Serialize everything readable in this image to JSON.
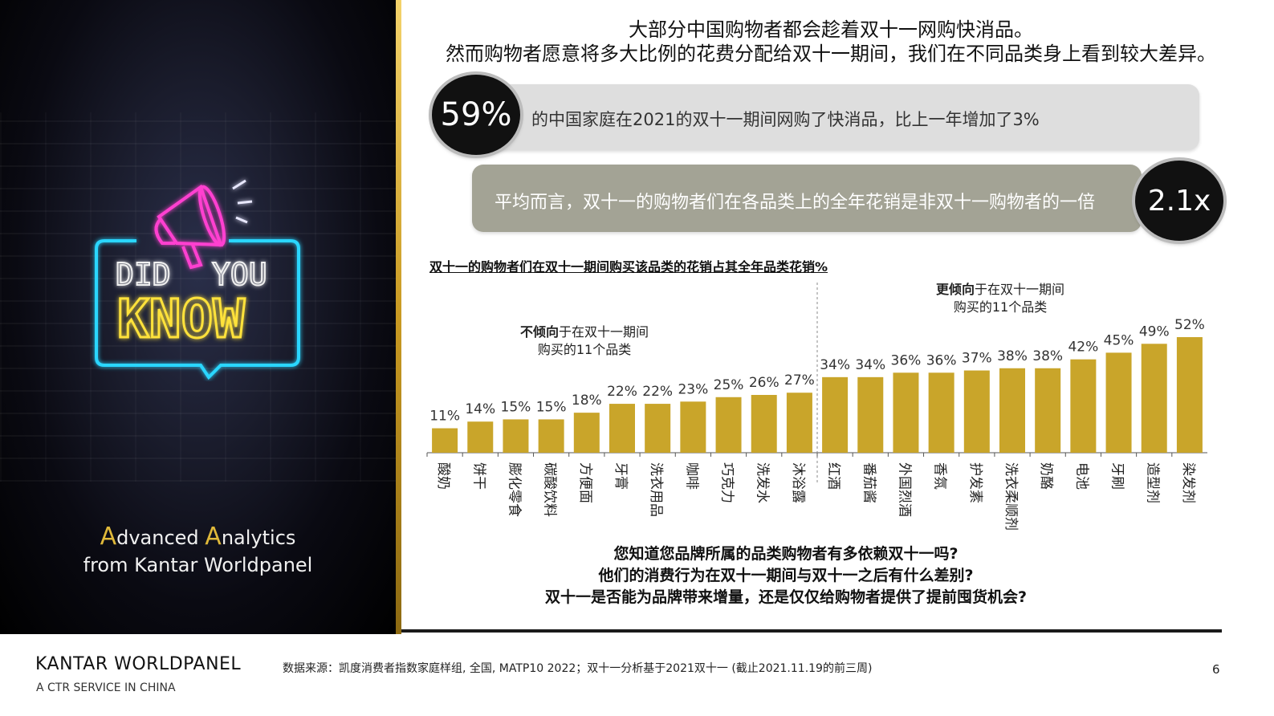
{
  "left_panel": {
    "neon_sign": {
      "line1": "DID",
      "line1b": "YOU",
      "line2": "KNOW"
    },
    "tagline": {
      "cap1": "A",
      "word1": "dvanced ",
      "cap2": "A",
      "word2": "nalytics",
      "line2": "from Kantar Worldpanel"
    }
  },
  "headline": {
    "line1": "大部分中国购物者都会趁着双十一网购快消品。",
    "line2": "然而购物者愿意将多大比例的花费分配给双十一期间，我们在不同品类身上看到较大差异。"
  },
  "stats": [
    {
      "value": "59%",
      "text": "的中国家庭在2021的双十一期间网购了快消品，比上一年增加了3%"
    },
    {
      "value": "2.1x",
      "text": "平均而言，双十一的购物者们在各品类上的全年花销是非双十一购物者的一倍"
    }
  ],
  "chart_data": {
    "type": "bar",
    "title": "双十一的购物者们在双十一期间购买该品类的花销占其全年品类花销%",
    "categories": [
      "酸奶",
      "饼干",
      "膨化零食",
      "碳酸饮料",
      "方便面",
      "牙膏",
      "洗衣用品",
      "咖啡",
      "巧克力",
      "洗发水",
      "沐浴露",
      "红酒",
      "番茄酱",
      "外国烈酒",
      "香氛",
      "护发素",
      "洗衣柔顺剂",
      "奶酪",
      "电池",
      "牙刷",
      "造型剂",
      "染发剂"
    ],
    "values": [
      11,
      14,
      15,
      15,
      18,
      22,
      22,
      23,
      25,
      26,
      27,
      34,
      34,
      36,
      36,
      37,
      38,
      38,
      42,
      45,
      49,
      52
    ],
    "value_labels": [
      "11%",
      "14%",
      "15%",
      "15%",
      "18%",
      "22%",
      "22%",
      "23%",
      "25%",
      "26%",
      "27%",
      "34%",
      "34%",
      "36%",
      "36%",
      "37%",
      "38%",
      "38%",
      "42%",
      "45%",
      "49%",
      "52%"
    ],
    "groups": [
      {
        "bold": "不倾向",
        "rest": "于在双十一期间",
        "line2": "购买的11个品类"
      },
      {
        "bold": "更倾向",
        "rest": "于在双十一期间",
        "line2": "购买的11个品类"
      }
    ],
    "bar_color": "#c9a52a",
    "ylim": [
      0,
      52
    ]
  },
  "questions": [
    "您知道您品牌所属的品类购物者有多依赖双十一吗?",
    "他们的消费行为在双十一期间与双十一之后有什么差别?",
    "双十一是否能为品牌带来增量，还是仅仅给购物者提供了提前囤货机会?"
  ],
  "footer": {
    "brand": "KANTAR WORLDPANEL",
    "brand_sub": "A CTR SERVICE IN CHINA",
    "source": "数据来源：凯度消费者指数家庭样组, 全国, MATP10 2022；双十一分析基于2021双十一 (截止2021.11.19的前三周)",
    "page": "6"
  }
}
